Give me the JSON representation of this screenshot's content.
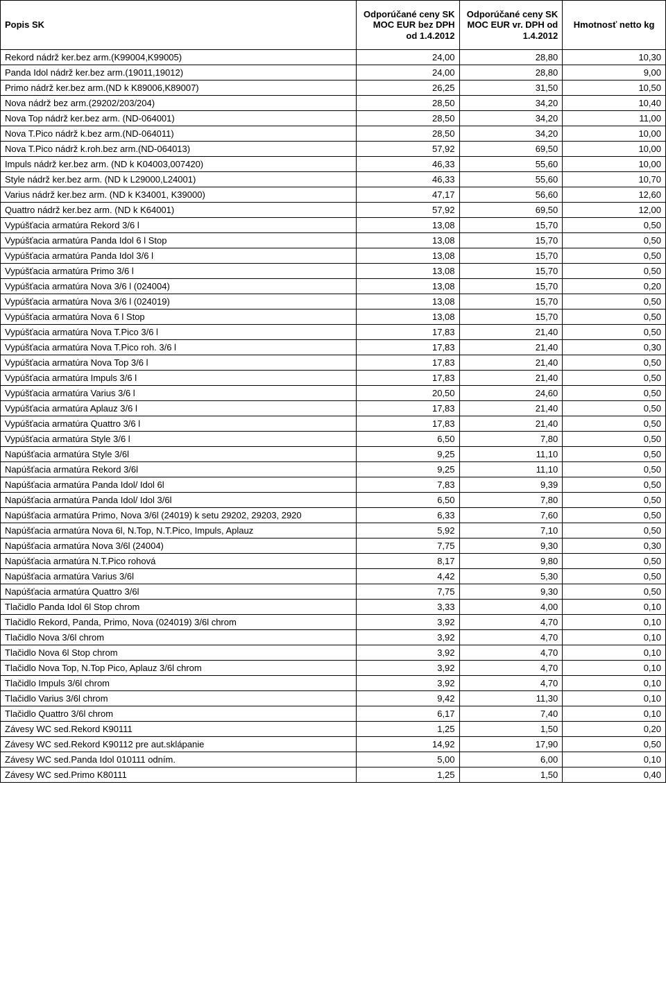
{
  "headers": {
    "col1": "Popis SK",
    "col2": "Odporúčané ceny SK MOC EUR bez DPH od 1.4.2012",
    "col3": "Odporúčané ceny SK MOC EUR vr. DPH od 1.4.2012",
    "col4": "Hmotnosť netto kg"
  },
  "rows": [
    {
      "d": "Rekord nádrž ker.bez arm.(K99004,K99005)",
      "a": "24,00",
      "b": "28,80",
      "c": "10,30"
    },
    {
      "d": "Panda Idol nádrž ker.bez arm.(19011,19012)",
      "a": "24,00",
      "b": "28,80",
      "c": "9,00"
    },
    {
      "d": "Primo nádrž ker.bez arm.(ND k K89006,K89007)",
      "a": "26,25",
      "b": "31,50",
      "c": "10,50"
    },
    {
      "d": "Nova nádrž bez arm.(29202/203/204)",
      "a": "28,50",
      "b": "34,20",
      "c": "10,40"
    },
    {
      "d": "Nova Top nádrž ker.bez arm. (ND-064001)",
      "a": "28,50",
      "b": "34,20",
      "c": "11,00"
    },
    {
      "d": "Nova T.Pico nádrž k.bez arm.(ND-064011)",
      "a": "28,50",
      "b": "34,20",
      "c": "10,00"
    },
    {
      "d": "Nova T.Pico nádrž k.roh.bez arm.(ND-064013)",
      "a": "57,92",
      "b": "69,50",
      "c": "10,00"
    },
    {
      "d": "Impuls nádrž ker.bez arm. (ND k K04003,007420)",
      "a": "46,33",
      "b": "55,60",
      "c": "10,00"
    },
    {
      "d": "Style nádrž ker.bez arm. (ND k L29000,L24001)",
      "a": "46,33",
      "b": "55,60",
      "c": "10,70"
    },
    {
      "d": "Varius nádrž ker.bez arm. (ND k K34001, K39000)",
      "a": "47,17",
      "b": "56,60",
      "c": "12,60"
    },
    {
      "d": "Quattro nádrž ker.bez arm. (ND k K64001)",
      "a": "57,92",
      "b": "69,50",
      "c": "12,00"
    },
    {
      "d": "Vypúšťacia armatúra Rekord 3/6 l",
      "a": "13,08",
      "b": "15,70",
      "c": "0,50"
    },
    {
      "d": "Vypúšťacia armatúra Panda Idol 6 l Stop",
      "a": "13,08",
      "b": "15,70",
      "c": "0,50"
    },
    {
      "d": "Vypúšťacia armatúra Panda Idol 3/6 l",
      "a": "13,08",
      "b": "15,70",
      "c": "0,50"
    },
    {
      "d": "Vypúšťacia armatúra Primo 3/6 l",
      "a": "13,08",
      "b": "15,70",
      "c": "0,50"
    },
    {
      "d": "Vypúšťacia armatúra Nova 3/6 l (024004)",
      "a": "13,08",
      "b": "15,70",
      "c": "0,20"
    },
    {
      "d": "Vypúšťacia armatúra Nova 3/6 l (024019)",
      "a": "13,08",
      "b": "15,70",
      "c": "0,50"
    },
    {
      "d": "Vypúšťacia armatúra Nova 6 l Stop",
      "a": "13,08",
      "b": "15,70",
      "c": "0,50"
    },
    {
      "d": "Vypúšťacia armatúra Nova T.Pico 3/6 l",
      "a": "17,83",
      "b": "21,40",
      "c": "0,50"
    },
    {
      "d": "Vypúšťacia armatúra Nova T.Pico roh. 3/6 l",
      "a": "17,83",
      "b": "21,40",
      "c": "0,30"
    },
    {
      "d": "Vypúšťacia armatúra Nova Top 3/6 l",
      "a": "17,83",
      "b": "21,40",
      "c": "0,50"
    },
    {
      "d": "Vypúšťacia armatúra Impuls 3/6 l",
      "a": "17,83",
      "b": "21,40",
      "c": "0,50"
    },
    {
      "d": "Vypúšťacia armatúra Varius 3/6 l",
      "a": "20,50",
      "b": "24,60",
      "c": "0,50"
    },
    {
      "d": "Vypúšťacia armatúra Aplauz 3/6 l",
      "a": "17,83",
      "b": "21,40",
      "c": "0,50"
    },
    {
      "d": "Vypúšťacia armatúra Quattro 3/6 l",
      "a": "17,83",
      "b": "21,40",
      "c": "0,50"
    },
    {
      "d": "Vypúšťacia armatúra Style 3/6 l",
      "a": "6,50",
      "b": "7,80",
      "c": "0,50"
    },
    {
      "d": "Napúšťacia armatúra Style 3/6l",
      "a": "9,25",
      "b": "11,10",
      "c": "0,50"
    },
    {
      "d": "Napúšťacia armatúra Rekord 3/6l",
      "a": "9,25",
      "b": "11,10",
      "c": "0,50"
    },
    {
      "d": "Napúšťacia armatúra Panda Idol/ Idol 6l",
      "a": "7,83",
      "b": "9,39",
      "c": "0,50"
    },
    {
      "d": "Napúšťacia armatúra Panda Idol/ Idol 3/6l",
      "a": "6,50",
      "b": "7,80",
      "c": "0,50"
    },
    {
      "d": "Napúšťacia armatúra Primo, Nova 3/6l (24019) k setu 29202, 29203, 2920",
      "a": "6,33",
      "b": "7,60",
      "c": "0,50"
    },
    {
      "d": "Napúšťacia armatúra Nova 6l, N.Top, N.T.Pico, Impuls, Aplauz",
      "a": "5,92",
      "b": "7,10",
      "c": "0,50"
    },
    {
      "d": "Napúšťacia armatúra Nova 3/6l (24004)",
      "a": "7,75",
      "b": "9,30",
      "c": "0,30"
    },
    {
      "d": "Napúšťacia armatúra N.T.Pico rohová",
      "a": "8,17",
      "b": "9,80",
      "c": "0,50"
    },
    {
      "d": "Napúšťacia armatúra Varius 3/6l",
      "a": "4,42",
      "b": "5,30",
      "c": "0,50"
    },
    {
      "d": "Napúšťacia armatúra Quattro 3/6l",
      "a": "7,75",
      "b": "9,30",
      "c": "0,50"
    },
    {
      "d": "Tlačidlo Panda Idol 6l Stop chrom",
      "a": "3,33",
      "b": "4,00",
      "c": "0,10"
    },
    {
      "d": "Tlačidlo Rekord, Panda, Primo, Nova (024019) 3/6l  chrom",
      "a": "3,92",
      "b": "4,70",
      "c": "0,10"
    },
    {
      "d": "Tlačidlo Nova 3/6l chrom",
      "a": "3,92",
      "b": "4,70",
      "c": "0,10"
    },
    {
      "d": "Tlačidlo Nova 6l Stop chrom",
      "a": "3,92",
      "b": "4,70",
      "c": "0,10"
    },
    {
      "d": "Tlačidlo Nova Top, N.Top Pico, Aplauz 3/6l chrom",
      "a": "3,92",
      "b": "4,70",
      "c": "0,10"
    },
    {
      "d": "Tlačidlo Impuls 3/6l chrom",
      "a": "3,92",
      "b": "4,70",
      "c": "0,10"
    },
    {
      "d": "Tlačidlo Varius 3/6l chrom",
      "a": "9,42",
      "b": "11,30",
      "c": "0,10"
    },
    {
      "d": "Tlačidlo Quattro 3/6l chrom",
      "a": "6,17",
      "b": "7,40",
      "c": "0,10"
    },
    {
      "d": "Závesy WC sed.Rekord K90111",
      "a": "1,25",
      "b": "1,50",
      "c": "0,20"
    },
    {
      "d": "Závesy WC sed.Rekord K90112 pre aut.sklápanie",
      "a": "14,92",
      "b": "17,90",
      "c": "0,50"
    },
    {
      "d": "Závesy WC sed.Panda Idol 010111 odním.",
      "a": "5,00",
      "b": "6,00",
      "c": "0,10"
    },
    {
      "d": "Závesy WC sed.Primo K80111",
      "a": "1,25",
      "b": "1,50",
      "c": "0,40"
    }
  ]
}
